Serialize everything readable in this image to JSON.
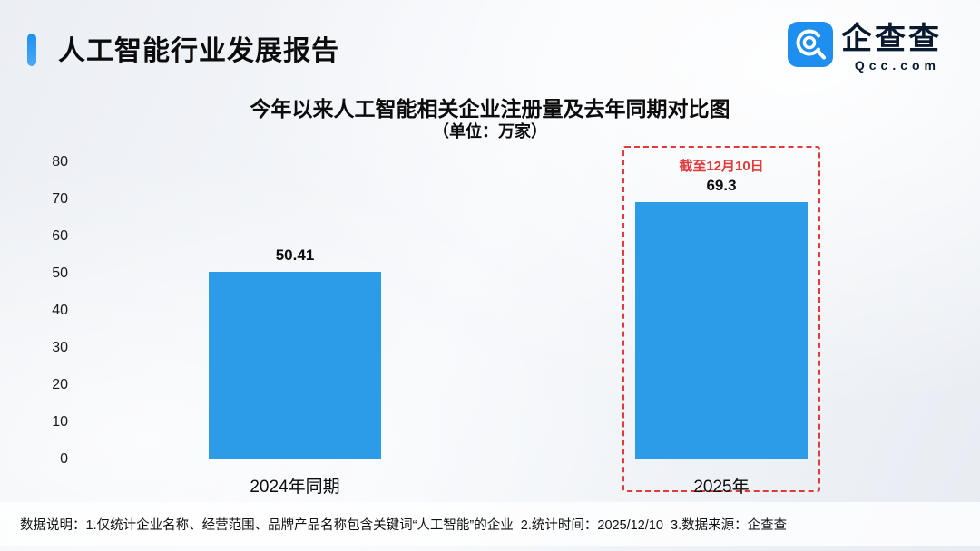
{
  "header": {
    "title": "人工智能行业发展报告",
    "logo": {
      "name": "企查查",
      "domain": "Qcc.com"
    }
  },
  "chart_data": {
    "type": "bar",
    "title": "今年以来人工智能相关企业注册量及去年同期对比图",
    "subtitle": "（单位：万家）",
    "categories": [
      "2024年同期",
      "2025年"
    ],
    "values": [
      50.41,
      69.3
    ],
    "value_labels": [
      "50.41",
      "69.3"
    ],
    "xlabel": "",
    "ylabel": "",
    "ylim": [
      0,
      80
    ],
    "yticks": [
      0,
      10,
      20,
      30,
      40,
      50,
      60,
      70,
      80
    ],
    "grid": false,
    "legend": "none",
    "bar_color": "#2d9ce8",
    "annotation": {
      "text": "截至12月10日",
      "target_category": "2025年",
      "color": "#e03a3a",
      "style": "dashed-box"
    }
  },
  "footer": {
    "note": "数据说明：1.仅统计企业名称、经营范围、品牌产品名称包含关键词“人工智能”的企业  2.统计时间：2025/12/10  3.数据来源：企查查"
  },
  "colors": {
    "bar": "#2d9ce8",
    "accent_blue": "#1d8ff0",
    "annotation_red": "#e03a3a",
    "logo_navy": "#0a1a2e"
  }
}
